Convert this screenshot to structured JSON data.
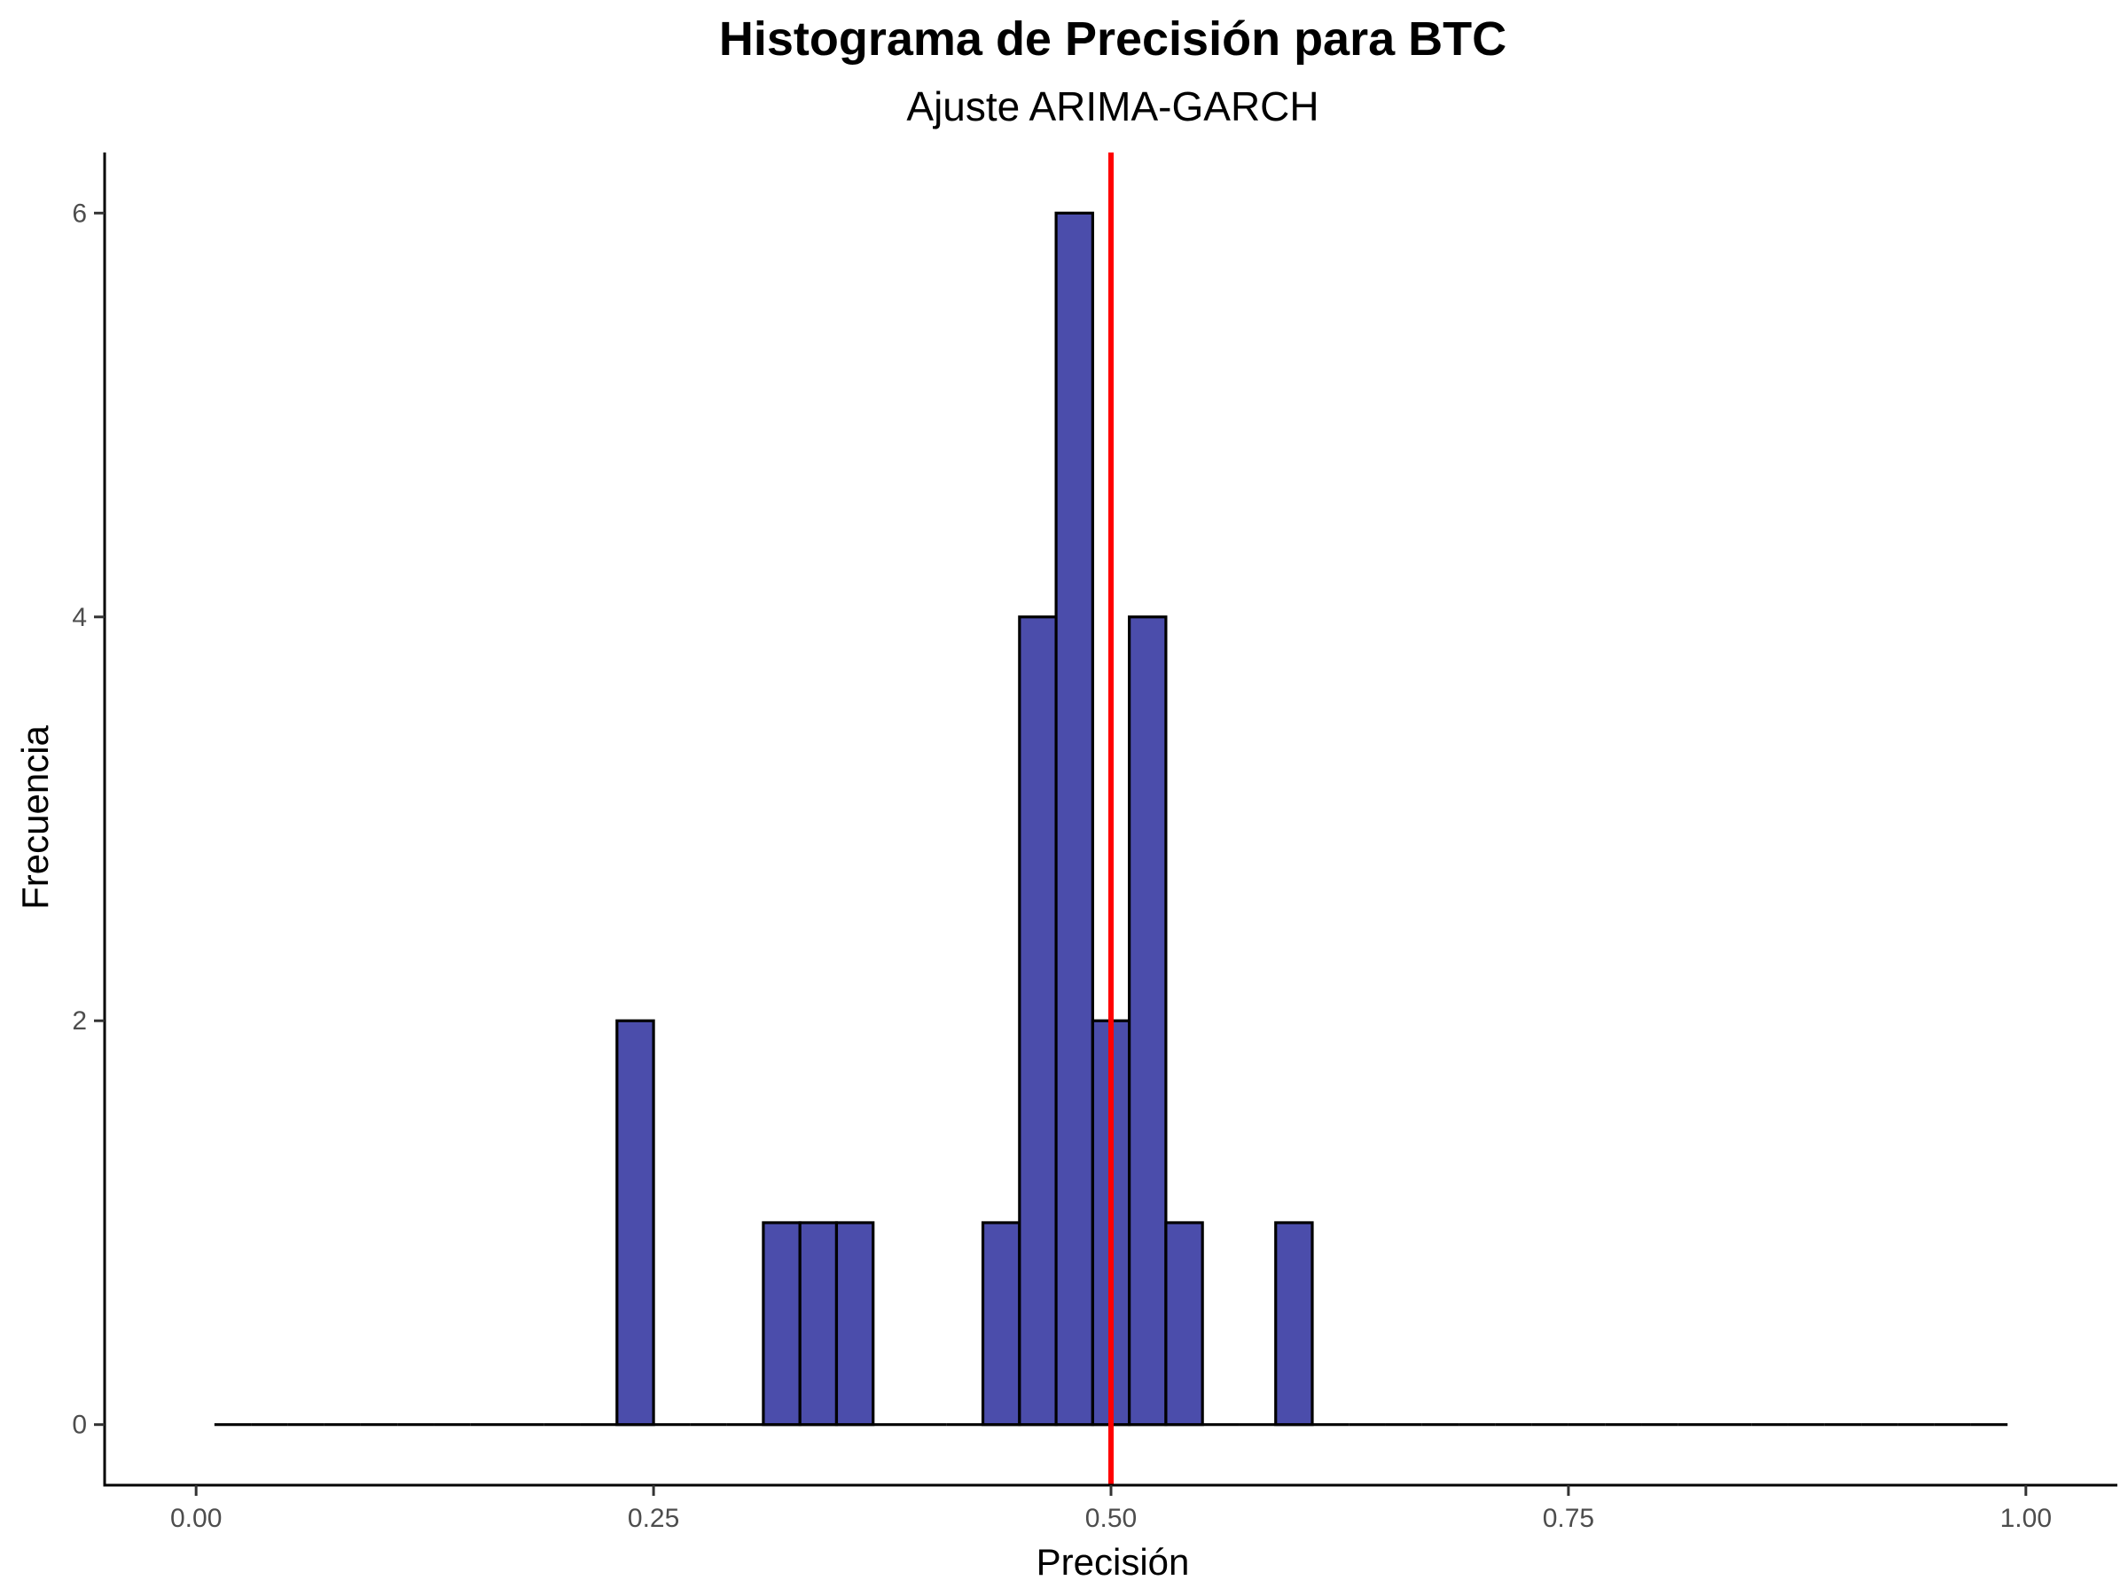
{
  "chart_data": {
    "type": "bar",
    "title": "Histograma de Precisión para BTC",
    "subtitle": "Ajuste ARIMA-GARCH",
    "xlabel": "Precisión",
    "ylabel": "Frecuencia",
    "xlim": [
      -0.05,
      1.05
    ],
    "ylim": [
      -0.3,
      6.3
    ],
    "x_ticks": [
      0.0,
      0.25,
      0.5,
      0.75,
      1.0
    ],
    "x_tick_labels": [
      "0.00",
      "0.25",
      "0.50",
      "0.75",
      "1.00"
    ],
    "y_ticks": [
      0,
      2,
      4,
      6
    ],
    "y_tick_labels": [
      "0",
      "2",
      "4",
      "6"
    ],
    "bin_width": 0.02,
    "bin_range": [
      0.01,
      0.99
    ],
    "bins": [
      {
        "x_start": 0.23,
        "x_end": 0.25,
        "count": 2
      },
      {
        "x_start": 0.31,
        "x_end": 0.33,
        "count": 1
      },
      {
        "x_start": 0.33,
        "x_end": 0.35,
        "count": 1
      },
      {
        "x_start": 0.35,
        "x_end": 0.37,
        "count": 1
      },
      {
        "x_start": 0.43,
        "x_end": 0.45,
        "count": 1
      },
      {
        "x_start": 0.45,
        "x_end": 0.47,
        "count": 4
      },
      {
        "x_start": 0.47,
        "x_end": 0.49,
        "count": 6
      },
      {
        "x_start": 0.49,
        "x_end": 0.51,
        "count": 2
      },
      {
        "x_start": 0.51,
        "x_end": 0.53,
        "count": 4
      },
      {
        "x_start": 0.53,
        "x_end": 0.55,
        "count": 1
      },
      {
        "x_start": 0.59,
        "x_end": 0.61,
        "count": 1
      }
    ],
    "reference_line": {
      "x": 0.5,
      "color": "#ff0000"
    },
    "bar_fill": "#4b4dab",
    "bar_stroke": "#000000",
    "grid": false,
    "legend": "none"
  }
}
